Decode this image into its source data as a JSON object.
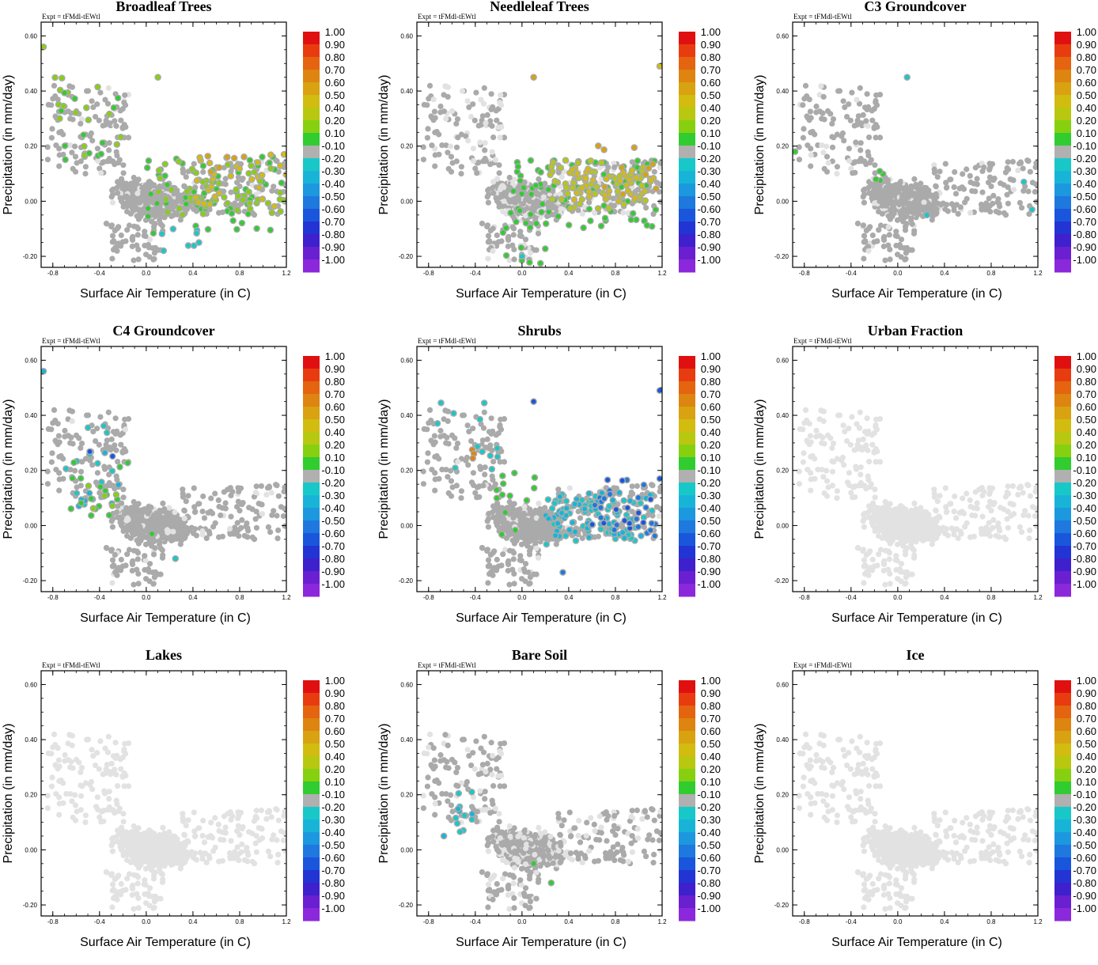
{
  "colorbar": {
    "labels": [
      "1.00",
      "0.90",
      "0.80",
      "0.70",
      "0.60",
      "0.50",
      "0.40",
      "0.20",
      "0.10",
      "-0.10",
      "-0.20",
      "-0.30",
      "-0.40",
      "-0.50",
      "-0.60",
      "-0.70",
      "-0.80",
      "-0.90",
      "-1.00"
    ],
    "colors": [
      "#e01010",
      "#e83c10",
      "#e46410",
      "#de8410",
      "#d8a210",
      "#d2bc10",
      "#b8c810",
      "#86d010",
      "#30cc30",
      "#b0b0b0",
      "#18c8c8",
      "#18b4d8",
      "#1c98de",
      "#1e78de",
      "#1a56dc",
      "#2234d4",
      "#3e20cc",
      "#6a20d0",
      "#8c28dc"
    ],
    "grey_dot": "#aaaaaa",
    "light_dot": "#e2e2e2"
  },
  "chart_data": [
    {
      "type": "scatter",
      "title": "Broadleaf Trees",
      "expt": "Expt = tFMdl-tEWtl",
      "xlabel": "Surface Air Temperature (in C)",
      "ylabel": "Precipitation (in mm/day)",
      "xlim": [
        -0.9,
        1.2
      ],
      "ylim": [
        -0.24,
        0.65
      ],
      "xticks": [
        "-0.8",
        "-0.4",
        "0.0",
        "0.4",
        "0.8",
        "1.2"
      ],
      "yticks": [
        "-0.20",
        "0.00",
        "0.20",
        "0.40",
        "0.60"
      ],
      "base": "grey",
      "highlights": [
        {
          "region": [
            0.0,
            1.2,
            -0.12,
            0.18
          ],
          "color_index": 8,
          "count": 60
        },
        {
          "region": [
            0.1,
            1.2,
            -0.05,
            0.15
          ],
          "color_index": 7,
          "count": 55
        },
        {
          "region": [
            0.4,
            1.2,
            -0.02,
            0.17
          ],
          "color_index": 5,
          "count": 30
        },
        {
          "region": [
            0.5,
            0.9,
            0.1,
            0.18
          ],
          "color_index": 4,
          "count": 6
        },
        {
          "region": [
            -0.8,
            -0.2,
            0.15,
            0.45
          ],
          "color_index": 7,
          "count": 18
        },
        {
          "region": [
            -0.8,
            -0.2,
            0.15,
            0.4
          ],
          "color_index": 8,
          "count": 12
        },
        {
          "region": [
            0.1,
            0.5,
            -0.18,
            -0.1
          ],
          "color_index": 10,
          "count": 8
        }
      ],
      "outliers": [
        [
          -0.88,
          0.56,
          7
        ],
        [
          0.1,
          0.45,
          7
        ],
        [
          1.18,
          0.17,
          5
        ]
      ]
    },
    {
      "type": "scatter",
      "title": "Needleleaf Trees",
      "expt": "Expt = tFMdl-tEWtl",
      "xlabel": "Surface Air Temperature (in C)",
      "ylabel": "Precipitation (in mm/day)",
      "xlim": [
        -0.9,
        1.2
      ],
      "ylim": [
        -0.24,
        0.65
      ],
      "xticks": [
        "-0.8",
        "-0.4",
        "0.0",
        "0.4",
        "0.8",
        "1.2"
      ],
      "yticks": [
        "-0.20",
        "0.00",
        "0.20",
        "0.40",
        "0.60"
      ],
      "base": "grey-mixed",
      "highlights": [
        {
          "region": [
            -0.1,
            1.15,
            -0.1,
            0.15
          ],
          "color_index": 8,
          "count": 90
        },
        {
          "region": [
            0.2,
            1.15,
            -0.03,
            0.15
          ],
          "color_index": 6,
          "count": 60
        },
        {
          "region": [
            0.4,
            1.15,
            0.0,
            0.13
          ],
          "color_index": 5,
          "count": 40
        },
        {
          "region": [
            0.6,
            1.15,
            0.02,
            0.22
          ],
          "color_index": 4,
          "count": 10
        },
        {
          "region": [
            -0.2,
            0.2,
            -0.23,
            -0.08
          ],
          "color_index": 8,
          "count": 8
        }
      ],
      "outliers": [
        [
          0.1,
          0.45,
          4
        ],
        [
          1.18,
          0.49,
          5
        ],
        [
          0.0,
          -0.2,
          10
        ]
      ]
    },
    {
      "type": "scatter",
      "title": "C3 Groundcover",
      "expt": "Expt = tFMdl-tEWtl",
      "xlabel": "Surface Air Temperature (in C)",
      "ylabel": "Precipitation (in mm/day)",
      "xlim": [
        -0.9,
        1.2
      ],
      "ylim": [
        -0.24,
        0.65
      ],
      "xticks": [
        "-0.8",
        "-0.4",
        "0.0",
        "0.4",
        "0.8",
        "1.2"
      ],
      "yticks": [
        "-0.20",
        "0.00",
        "0.20",
        "0.40",
        "0.60"
      ],
      "base": "grey",
      "highlights": [
        {
          "region": [
            -0.25,
            -0.1,
            0.04,
            0.11
          ],
          "color_index": 8,
          "count": 4
        }
      ],
      "outliers": [
        [
          0.08,
          0.45,
          10
        ],
        [
          -0.88,
          0.18,
          8
        ],
        [
          1.08,
          0.07,
          10
        ],
        [
          1.15,
          -0.03,
          10
        ],
        [
          0.25,
          -0.05,
          10
        ]
      ]
    },
    {
      "type": "scatter",
      "title": "C4 Groundcover",
      "expt": "Expt = tFMdl-tEWtl",
      "xlabel": "Surface Air Temperature (in C)",
      "ylabel": "Precipitation (in mm/day)",
      "xlim": [
        -0.9,
        1.2
      ],
      "ylim": [
        -0.24,
        0.65
      ],
      "xticks": [
        "-0.8",
        "-0.4",
        "0.0",
        "0.4",
        "0.8",
        "1.2"
      ],
      "yticks": [
        "-0.20",
        "0.00",
        "0.20",
        "0.40",
        "0.60"
      ],
      "base": "grey",
      "highlights": [
        {
          "region": [
            -0.7,
            -0.2,
            0.05,
            0.37
          ],
          "color_index": 10,
          "count": 14
        },
        {
          "region": [
            -0.7,
            -0.2,
            0.05,
            0.3
          ],
          "color_index": 11,
          "count": 8
        },
        {
          "region": [
            -0.7,
            -0.15,
            0.03,
            0.25
          ],
          "color_index": 8,
          "count": 16
        },
        {
          "region": [
            -0.5,
            -0.2,
            0.05,
            0.15
          ],
          "color_index": 7,
          "count": 5
        },
        {
          "region": [
            -0.5,
            -0.2,
            0.22,
            0.3
          ],
          "color_index": 14,
          "count": 2
        }
      ],
      "outliers": [
        [
          -0.88,
          0.56,
          11
        ],
        [
          0.25,
          -0.12,
          10
        ],
        [
          0.05,
          -0.03,
          8
        ]
      ]
    },
    {
      "type": "scatter",
      "title": "Shrubs",
      "expt": "Expt = tFMdl-tEWtl",
      "xlabel": "Surface Air Temperature (in C)",
      "ylabel": "Precipitation (in mm/day)",
      "xlim": [
        -0.9,
        1.2
      ],
      "ylim": [
        -0.24,
        0.65
      ],
      "xticks": [
        "-0.8",
        "-0.4",
        "0.0",
        "0.4",
        "0.8",
        "1.2"
      ],
      "yticks": [
        "-0.20",
        "0.00",
        "0.20",
        "0.40",
        "0.60"
      ],
      "base": "grey",
      "highlights": [
        {
          "region": [
            0.2,
            1.15,
            -0.07,
            0.12
          ],
          "color_index": 10,
          "count": 70
        },
        {
          "region": [
            0.2,
            1.15,
            -0.05,
            0.12
          ],
          "color_index": 11,
          "count": 50
        },
        {
          "region": [
            0.6,
            1.15,
            -0.05,
            0.17
          ],
          "color_index": 13,
          "count": 25
        },
        {
          "region": [
            0.6,
            1.15,
            -0.05,
            0.2
          ],
          "color_index": 14,
          "count": 12
        },
        {
          "region": [
            -0.25,
            0.15,
            -0.05,
            0.2
          ],
          "color_index": 8,
          "count": 14
        },
        {
          "region": [
            -0.8,
            -0.2,
            0.2,
            0.45
          ],
          "color_index": 10,
          "count": 12
        },
        {
          "region": [
            -0.5,
            -0.4,
            0.22,
            0.28
          ],
          "color_index": 3,
          "count": 3
        }
      ],
      "outliers": [
        [
          0.1,
          0.45,
          14
        ],
        [
          1.18,
          0.49,
          14
        ],
        [
          1.18,
          0.17,
          14
        ],
        [
          0.35,
          -0.17,
          13
        ]
      ]
    },
    {
      "type": "scatter",
      "title": "Urban Fraction",
      "expt": "Expt = tFMdl-tEWtl",
      "xlabel": "Surface Air Temperature (in C)",
      "ylabel": "Precipitation (in mm/day)",
      "xlim": [
        -0.9,
        1.2
      ],
      "ylim": [
        -0.24,
        0.65
      ],
      "xticks": [
        "-0.8",
        "-0.4",
        "0.0",
        "0.4",
        "0.8",
        "1.2"
      ],
      "yticks": [
        "-0.20",
        "0.00",
        "0.20",
        "0.40",
        "0.60"
      ],
      "base": "light",
      "highlights": [],
      "outliers": []
    },
    {
      "type": "scatter",
      "title": "Lakes",
      "expt": "Expt = tFMdl-tEWtl",
      "xlabel": "Surface Air Temperature (in C)",
      "ylabel": "Precipitation (in mm/day)",
      "xlim": [
        -0.9,
        1.2
      ],
      "ylim": [
        -0.24,
        0.65
      ],
      "xticks": [
        "-0.8",
        "-0.4",
        "0.0",
        "0.4",
        "0.8",
        "1.2"
      ],
      "yticks": [
        "-0.20",
        "0.00",
        "0.20",
        "0.40",
        "0.60"
      ],
      "base": "light",
      "highlights": [],
      "outliers": []
    },
    {
      "type": "scatter",
      "title": "Bare Soil",
      "expt": "Expt = tFMdl-tEWtl",
      "xlabel": "Surface Air Temperature (in C)",
      "ylabel": "Precipitation (in mm/day)",
      "xlim": [
        -0.9,
        1.2
      ],
      "ylim": [
        -0.24,
        0.65
      ],
      "xticks": [
        "-0.8",
        "-0.4",
        "0.0",
        "0.4",
        "0.8",
        "1.2"
      ],
      "yticks": [
        "-0.20",
        "0.00",
        "0.20",
        "0.40",
        "0.60"
      ],
      "base": "grey-mixed",
      "highlights": [
        {
          "region": [
            -0.7,
            -0.35,
            0.05,
            0.22
          ],
          "color_index": 10,
          "count": 10
        },
        {
          "region": [
            -0.7,
            -0.35,
            0.05,
            0.2
          ],
          "color_index": 11,
          "count": 4
        }
      ],
      "outliers": [
        [
          0.1,
          -0.05,
          8
        ],
        [
          0.25,
          -0.12,
          8
        ]
      ]
    },
    {
      "type": "scatter",
      "title": "Ice",
      "expt": "Expt = tFMdl-tEWtl",
      "xlabel": "Surface Air Temperature (in C)",
      "ylabel": "Precipitation (in mm/day)",
      "xlim": [
        -0.9,
        1.2
      ],
      "ylim": [
        -0.24,
        0.65
      ],
      "xticks": [
        "-0.8",
        "-0.4",
        "0.0",
        "0.4",
        "0.8",
        "1.2"
      ],
      "yticks": [
        "-0.20",
        "0.00",
        "0.20",
        "0.40",
        "0.60"
      ],
      "base": "light",
      "highlights": [],
      "outliers": []
    }
  ]
}
